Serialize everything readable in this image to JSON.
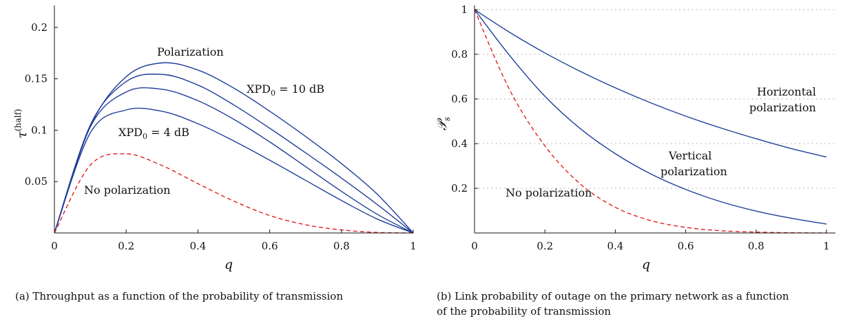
{
  "chart_data": [
    {
      "type": "line",
      "xlabel": "q",
      "ylabel": "τ",
      "ylabel_sup": "(half)",
      "xlim": [
        0,
        1
      ],
      "ylim": [
        0,
        0.22
      ],
      "xticks": [
        0,
        0.2,
        0.4,
        0.6,
        0.8,
        1
      ],
      "xtick_labels": [
        "0",
        "0.2",
        "0.4",
        "0.6",
        "0.8",
        "1"
      ],
      "yticks": [
        0.05,
        0.1,
        0.15,
        0.2
      ],
      "ytick_labels": [
        "0.05",
        "0.1",
        "0.15",
        "0.2"
      ],
      "x": [
        0,
        0.1,
        0.2,
        0.3,
        0.4,
        0.5,
        0.6,
        0.7,
        0.8,
        0.9,
        1.0
      ],
      "series": [
        {
          "color": "#1f3d99",
          "dash": false,
          "values": [
            0,
            0.1036,
            0.1521,
            0.1655,
            0.1585,
            0.1409,
            0.1185,
            0.0939,
            0.0675,
            0.0376,
            0
          ]
        },
        {
          "color": "#1f3d99",
          "dash": false,
          "values": [
            0,
            0.1049,
            0.1473,
            0.1543,
            0.1439,
            0.1246,
            0.1019,
            0.078,
            0.0534,
            0.0276,
            0
          ]
        },
        {
          "color": "#1f3d99",
          "dash": false,
          "values": [
            0,
            0.1031,
            0.1372,
            0.1398,
            0.1287,
            0.1106,
            0.0886,
            0.0646,
            0.0405,
            0.0181,
            0
          ]
        },
        {
          "color": "#1f3d99",
          "dash": false,
          "values": [
            0,
            0.0974,
            0.1197,
            0.1184,
            0.1063,
            0.0895,
            0.0708,
            0.0512,
            0.0316,
            0.0135,
            0
          ]
        },
        {
          "color": "#e02020",
          "dash": true,
          "values": [
            0,
            0.066,
            0.077,
            0.0656,
            0.048,
            0.031,
            0.017,
            0.008,
            0.003,
            0.0005,
            0
          ]
        }
      ],
      "annotations": [
        "Polarization",
        "XPD",
        "0",
        " = 10 dB",
        "XPD",
        "0",
        " = 4 dB",
        "No polarization"
      ],
      "caption": "(a)  Throughput as a function of the probability of transmission"
    },
    {
      "type": "line",
      "xlabel": "q",
      "ylabel": "𝒫",
      "ylabel_sub": "s",
      "xlim": [
        0,
        1
      ],
      "ylim": [
        0,
        1
      ],
      "grid": "horizontal dotted",
      "xticks": [
        0,
        0.2,
        0.4,
        0.6,
        0.8,
        1
      ],
      "xtick_labels": [
        "0",
        "0.2",
        "0.4",
        "0.6",
        "0.8",
        "1"
      ],
      "yticks": [
        0.2,
        0.4,
        0.6,
        0.8,
        1
      ],
      "ytick_labels": [
        "0.2",
        "0.4",
        "0.6",
        "0.8",
        "1"
      ],
      "x": [
        0,
        0.1,
        0.2,
        0.3,
        0.4,
        0.5,
        0.6,
        0.7,
        0.8,
        0.9,
        1.0
      ],
      "series": [
        {
          "color": "#1f3d99",
          "dash": false,
          "values": [
            1,
            0.898,
            0.806,
            0.724,
            0.65,
            0.583,
            0.523,
            0.47,
            0.422,
            0.378,
            0.34
          ]
        },
        {
          "color": "#1f3d99",
          "dash": false,
          "values": [
            1,
            0.794,
            0.612,
            0.468,
            0.355,
            0.265,
            0.195,
            0.14,
            0.098,
            0.066,
            0.04
          ]
        },
        {
          "color": "#e02020",
          "dash": true,
          "values": [
            1,
            0.64,
            0.39,
            0.22,
            0.115,
            0.056,
            0.025,
            0.01,
            0.004,
            0.001,
            0
          ]
        }
      ],
      "annotations": [
        "Horizontal",
        "polarization",
        "Vertical",
        "polarization",
        "No polarization"
      ],
      "caption_line1": "(b)  Link probability of outage on the primary network as a function",
      "caption_line2": "of the probability of transmission"
    }
  ]
}
